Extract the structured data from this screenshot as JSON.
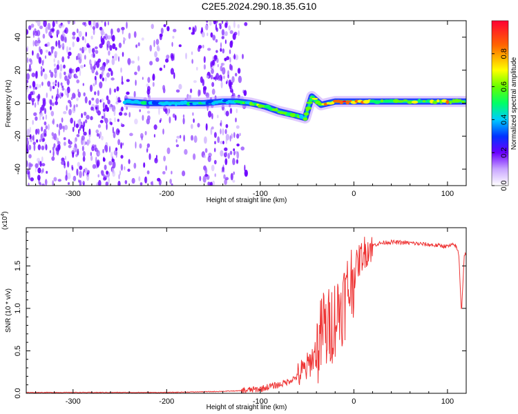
{
  "title": "C2E5.2024.290.18.35.G10",
  "chart_data": [
    {
      "type": "heatmap",
      "xlabel": "Height of straight line (km)",
      "ylabel": "Frequency (Hz)",
      "xlim": [
        -350,
        120
      ],
      "ylim": [
        -50,
        50
      ],
      "xticks": [
        -300,
        -200,
        -100,
        0,
        100
      ],
      "yticks": [
        -40,
        -20,
        0,
        20,
        40
      ],
      "colorbar": {
        "label": "Normalized spectral amplitude",
        "range": [
          0.0,
          1.0
        ],
        "ticks": [
          "0.0",
          "0.2",
          "0.4",
          "0.6",
          "0.8"
        ]
      },
      "ridge": [
        {
          "x": -245,
          "y": 1,
          "amp": 0.35
        },
        {
          "x": -220,
          "y": 0,
          "amp": 0.35
        },
        {
          "x": -200,
          "y": 0,
          "amp": 0.35
        },
        {
          "x": -180,
          "y": 0,
          "amp": 0.35
        },
        {
          "x": -160,
          "y": 0,
          "amp": 0.35
        },
        {
          "x": -140,
          "y": 1,
          "amp": 0.3
        },
        {
          "x": -125,
          "y": 1,
          "amp": 0.4
        },
        {
          "x": -110,
          "y": 0,
          "amp": 0.5
        },
        {
          "x": -95,
          "y": -2,
          "amp": 0.55
        },
        {
          "x": -80,
          "y": -5,
          "amp": 0.5
        },
        {
          "x": -65,
          "y": -7,
          "amp": 0.5
        },
        {
          "x": -52,
          "y": -9,
          "amp": 0.45
        },
        {
          "x": -45,
          "y": 4,
          "amp": 0.55
        },
        {
          "x": -35,
          "y": -1,
          "amp": 0.6
        },
        {
          "x": -20,
          "y": 1,
          "amp": 0.8
        },
        {
          "x": 0,
          "y": 1,
          "amp": 0.75
        },
        {
          "x": 20,
          "y": 1,
          "amp": 0.55
        },
        {
          "x": 50,
          "y": 1,
          "amp": 0.55
        },
        {
          "x": 80,
          "y": 1,
          "amp": 0.55
        },
        {
          "x": 100,
          "y": 1,
          "amp": 0.65
        },
        {
          "x": 120,
          "y": 1,
          "amp": 0.55
        }
      ]
    },
    {
      "type": "line",
      "xlabel": "Height of straight line (km)",
      "ylabel": "SNR (10 * v/v)",
      "yscale_label": "(x10",
      "yscale_exp": "4",
      "yscale_close": ")",
      "xlim": [
        -350,
        120
      ],
      "ylim": [
        0,
        1.95
      ],
      "xticks": [
        -300,
        -200,
        -100,
        0,
        100
      ],
      "yticks": [
        0.0,
        0.5,
        1.0,
        1.5
      ],
      "color": "#ee3333",
      "series": [
        {
          "x": [
            -350,
            -300,
            -250,
            -200,
            -150,
            -120,
            -100,
            -90,
            -80,
            -70,
            -60,
            -55,
            -50,
            -45,
            -40,
            -35,
            -32,
            -30,
            -25,
            -20,
            -15,
            -10,
            -5,
            0,
            5,
            10,
            15,
            20,
            25,
            30,
            35,
            40,
            60,
            80,
            100,
            108,
            110,
            112,
            115,
            118,
            120
          ],
          "y": [
            0.01,
            0.01,
            0.01,
            0.01,
            0.02,
            0.03,
            0.05,
            0.08,
            0.1,
            0.14,
            0.2,
            0.25,
            0.3,
            0.4,
            0.5,
            0.65,
            0.85,
            0.7,
            0.8,
            0.9,
            1.0,
            1.1,
            1.25,
            1.4,
            1.55,
            1.65,
            1.7,
            1.74,
            1.76,
            1.77,
            1.78,
            1.78,
            1.77,
            1.75,
            1.73,
            1.75,
            1.7,
            1.65,
            0.95,
            1.65,
            1.62
          ]
        }
      ]
    }
  ]
}
